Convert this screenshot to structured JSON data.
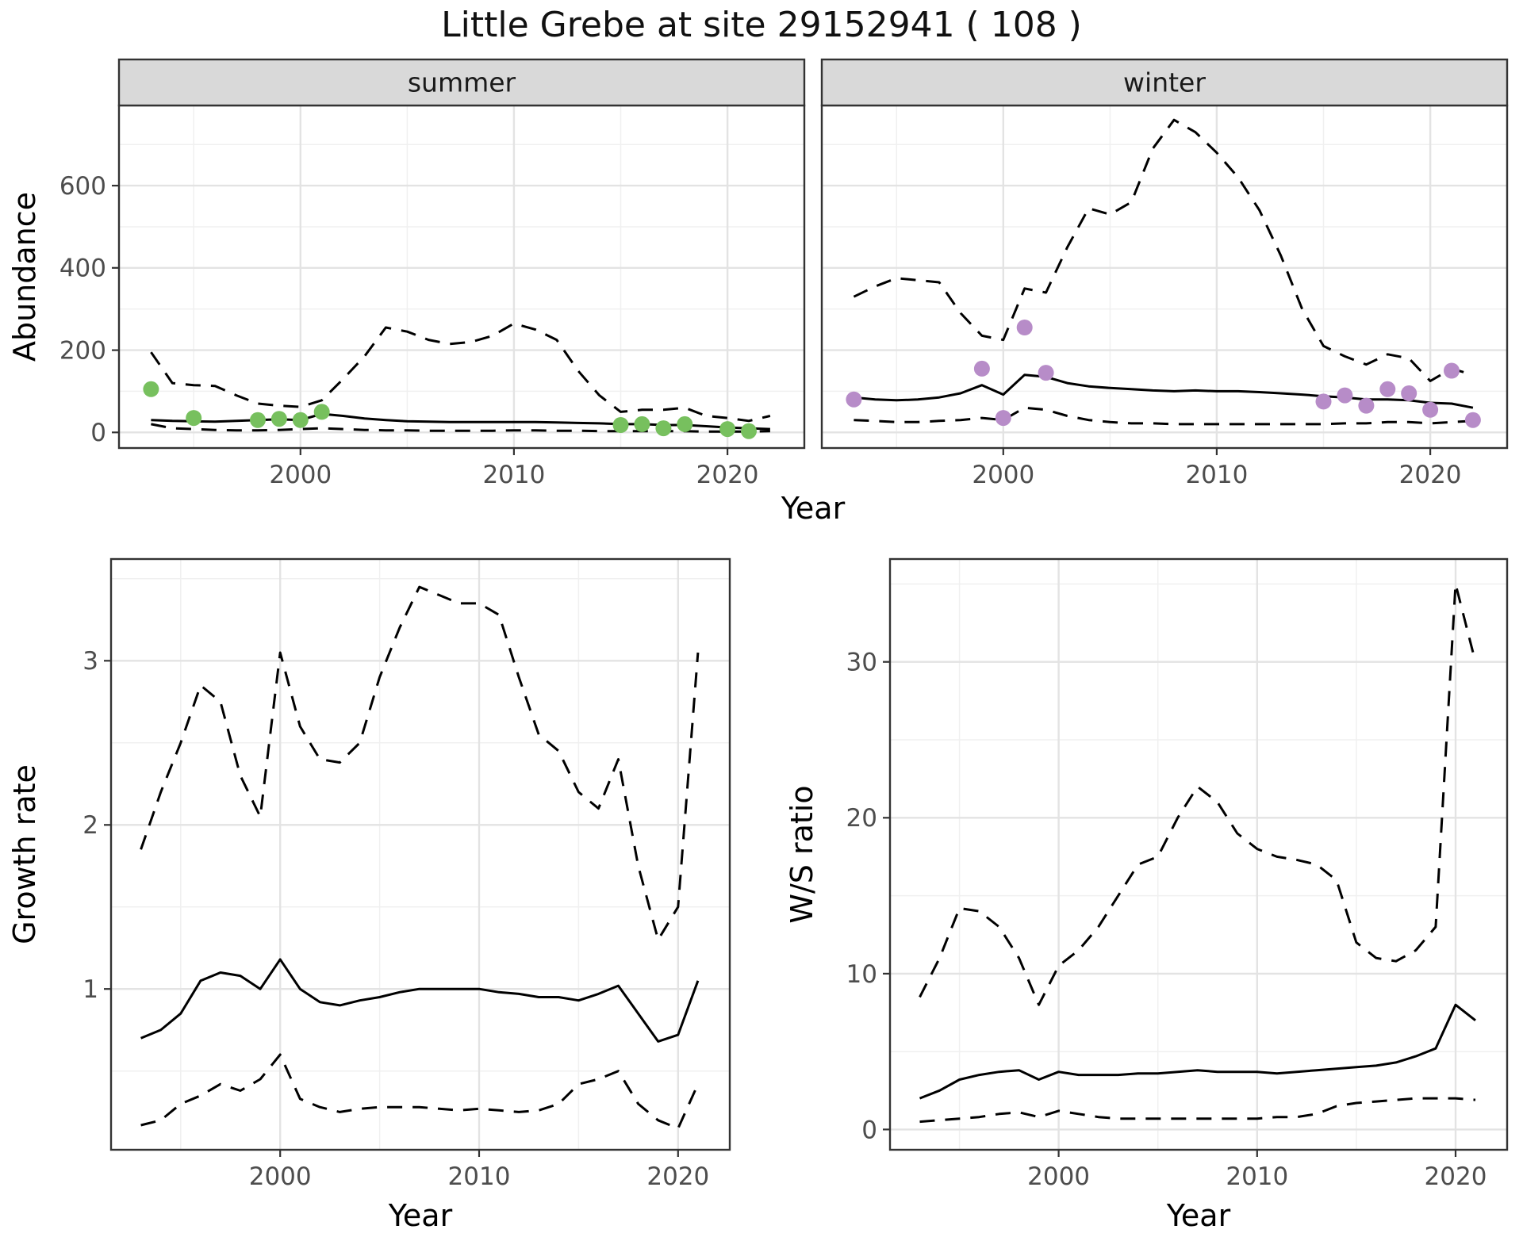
{
  "title": "Little Grebe at site 29152941 ( 108 )",
  "colors": {
    "summer_point": "#77c05e",
    "winter_point": "#b78cc8",
    "line": "#000000",
    "strip_background": "#d9d9d9",
    "panel_border": "#333333",
    "grid_major": "#e3e3e3",
    "grid_minor": "#f0f0f0",
    "tick_text": "#4d4d4d"
  },
  "chart_data": [
    {
      "id": "abundance",
      "type": "line",
      "title": "",
      "xlabel": "Year",
      "ylabel": "Abundance",
      "x": [
        1993,
        1994,
        1995,
        1996,
        1997,
        1998,
        1999,
        2000,
        2001,
        2002,
        2003,
        2004,
        2005,
        2006,
        2007,
        2008,
        2009,
        2010,
        2011,
        2012,
        2013,
        2014,
        2015,
        2016,
        2017,
        2018,
        2019,
        2020,
        2021,
        2022
      ],
      "xlim": [
        1991.5,
        2023.6
      ],
      "ylim": [
        -38,
        795
      ],
      "xticks": [
        2000,
        2010,
        2020
      ],
      "yticks": [
        0,
        200,
        400,
        600
      ],
      "grid": true,
      "legend": "none",
      "facets": [
        {
          "label": "summer",
          "point_color": "#77c05e",
          "median": [
            30,
            28,
            27,
            26,
            28,
            30,
            32,
            30,
            45,
            40,
            34,
            30,
            27,
            26,
            25,
            25,
            25,
            25,
            25,
            24,
            23,
            22,
            20,
            20,
            18,
            18,
            15,
            12,
            10,
            8
          ],
          "upper": [
            195,
            120,
            115,
            113,
            90,
            70,
            65,
            62,
            78,
            130,
            185,
            255,
            245,
            225,
            215,
            220,
            235,
            265,
            250,
            225,
            150,
            90,
            50,
            55,
            55,
            60,
            40,
            35,
            28,
            40
          ],
          "lower": [
            20,
            10,
            8,
            6,
            5,
            5,
            6,
            8,
            10,
            8,
            6,
            5,
            5,
            4,
            4,
            4,
            4,
            5,
            5,
            4,
            4,
            3,
            3,
            3,
            3,
            3,
            2,
            2,
            2,
            3
          ],
          "points": {
            "x": [
              1993,
              1995,
              1998,
              1999,
              2000,
              2001,
              2015,
              2016,
              2017,
              2018,
              2020,
              2021
            ],
            "y": [
              105,
              35,
              30,
              33,
              30,
              50,
              18,
              20,
              10,
              20,
              8,
              3
            ]
          }
        },
        {
          "label": "winter",
          "point_color": "#b78cc8",
          "median": [
            85,
            80,
            78,
            80,
            85,
            95,
            115,
            92,
            140,
            135,
            120,
            112,
            108,
            105,
            102,
            100,
            102,
            100,
            100,
            98,
            95,
            92,
            88,
            85,
            80,
            80,
            78,
            72,
            70,
            60
          ],
          "upper": [
            330,
            355,
            375,
            370,
            365,
            290,
            235,
            225,
            350,
            340,
            450,
            545,
            530,
            560,
            690,
            760,
            730,
            680,
            620,
            540,
            430,
            300,
            210,
            185,
            165,
            190,
            180,
            125,
            155,
            140
          ],
          "lower": [
            30,
            28,
            25,
            25,
            28,
            30,
            35,
            30,
            60,
            55,
            40,
            30,
            25,
            22,
            22,
            20,
            20,
            20,
            20,
            20,
            20,
            20,
            20,
            22,
            22,
            25,
            25,
            22,
            25,
            28
          ],
          "points": {
            "x": [
              1993,
              1999,
              2000,
              2001,
              2002,
              2015,
              2016,
              2017,
              2018,
              2019,
              2020,
              2021,
              2022
            ],
            "y": [
              80,
              155,
              35,
              255,
              145,
              75,
              90,
              65,
              105,
              95,
              55,
              150,
              30
            ]
          }
        }
      ]
    },
    {
      "id": "growth_rate",
      "type": "line",
      "title": "",
      "xlabel": "Year",
      "ylabel": "Growth rate",
      "x": [
        1993,
        1994,
        1995,
        1996,
        1997,
        1998,
        1999,
        2000,
        2001,
        2002,
        2003,
        2004,
        2005,
        2006,
        2007,
        2008,
        2009,
        2010,
        2011,
        2012,
        2013,
        2014,
        2015,
        2016,
        2017,
        2018,
        2019,
        2020,
        2021
      ],
      "xlim": [
        1991.5,
        2022.6
      ],
      "ylim": [
        0.02,
        3.62
      ],
      "xticks": [
        2000,
        2010,
        2020
      ],
      "yticks": [
        1,
        2,
        3
      ],
      "grid": true,
      "legend": "none",
      "median": [
        0.7,
        0.75,
        0.85,
        1.05,
        1.1,
        1.08,
        1.0,
        1.18,
        1.0,
        0.92,
        0.9,
        0.93,
        0.95,
        0.98,
        1.0,
        1.0,
        1.0,
        1.0,
        0.98,
        0.97,
        0.95,
        0.95,
        0.93,
        0.97,
        1.02,
        0.85,
        0.68,
        0.72,
        1.05
      ],
      "upper": [
        1.85,
        2.2,
        2.5,
        2.85,
        2.75,
        2.3,
        2.05,
        3.05,
        2.6,
        2.4,
        2.38,
        2.5,
        2.9,
        3.2,
        3.45,
        3.4,
        3.35,
        3.35,
        3.28,
        2.9,
        2.55,
        2.45,
        2.2,
        2.1,
        2.4,
        1.75,
        1.3,
        1.5,
        3.05
      ],
      "lower": [
        0.17,
        0.2,
        0.3,
        0.35,
        0.42,
        0.38,
        0.45,
        0.6,
        0.33,
        0.28,
        0.25,
        0.27,
        0.28,
        0.28,
        0.28,
        0.27,
        0.26,
        0.27,
        0.26,
        0.25,
        0.26,
        0.3,
        0.42,
        0.45,
        0.5,
        0.3,
        0.2,
        0.15,
        0.42
      ]
    },
    {
      "id": "ws_ratio",
      "type": "line",
      "title": "",
      "xlabel": "Year",
      "ylabel": "W/S ratio",
      "x": [
        1993,
        1994,
        1995,
        1996,
        1997,
        1998,
        1999,
        2000,
        2001,
        2002,
        2003,
        2004,
        2005,
        2006,
        2007,
        2008,
        2009,
        2010,
        2011,
        2012,
        2013,
        2014,
        2015,
        2016,
        2017,
        2018,
        2019,
        2020,
        2021
      ],
      "xlim": [
        1991.5,
        2022.6
      ],
      "ylim": [
        -1.3,
        36.6
      ],
      "xticks": [
        2000,
        2010,
        2020
      ],
      "yticks": [
        0,
        10,
        20,
        30
      ],
      "grid": true,
      "legend": "none",
      "median": [
        2.0,
        2.5,
        3.2,
        3.5,
        3.7,
        3.8,
        3.2,
        3.7,
        3.5,
        3.5,
        3.5,
        3.6,
        3.6,
        3.7,
        3.8,
        3.7,
        3.7,
        3.7,
        3.6,
        3.7,
        3.8,
        3.9,
        4.0,
        4.1,
        4.3,
        4.7,
        5.2,
        8.0,
        7.0
      ],
      "upper": [
        8.5,
        11,
        14.2,
        14,
        13,
        11,
        8,
        10.5,
        11.5,
        13,
        15,
        17,
        17.5,
        20,
        22,
        21,
        19,
        18,
        17.5,
        17.3,
        17,
        16,
        12,
        11,
        10.8,
        11.5,
        13,
        35,
        30
      ],
      "lower": [
        0.5,
        0.6,
        0.7,
        0.8,
        1.0,
        1.1,
        0.8,
        1.2,
        1.0,
        0.8,
        0.7,
        0.7,
        0.7,
        0.7,
        0.7,
        0.7,
        0.7,
        0.7,
        0.8,
        0.8,
        1.0,
        1.5,
        1.7,
        1.8,
        1.9,
        2.0,
        2.0,
        2.0,
        1.9
      ]
    }
  ]
}
